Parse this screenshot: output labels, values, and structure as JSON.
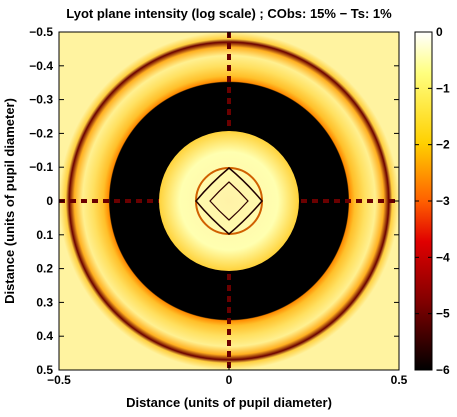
{
  "chart_data": {
    "type": "heatmap",
    "title": "Lyot plane intensity (log scale) ; CObs: 15% − Ts: 1%",
    "xlabel": "Distance (units of pupil diameter)",
    "ylabel": "Distance (units of pupil diameter)",
    "xlim": [
      -0.5,
      0.5
    ],
    "ylim": [
      -0.5,
      0.5
    ],
    "y_direction": "reversed",
    "x_ticks": [
      {
        "value": -0.5,
        "label": "−0.5"
      },
      {
        "value": 0,
        "label": "0"
      },
      {
        "value": 0.5,
        "label": "0.5"
      }
    ],
    "y_ticks": [
      {
        "value": -0.5,
        "label": "−0.5"
      },
      {
        "value": -0.4,
        "label": "−0.4"
      },
      {
        "value": -0.3,
        "label": "−0.3"
      },
      {
        "value": -0.2,
        "label": "−0.2"
      },
      {
        "value": -0.1,
        "label": "−0.1"
      },
      {
        "value": 0,
        "label": "0"
      },
      {
        "value": 0.1,
        "label": "0.1"
      },
      {
        "value": 0.2,
        "label": "0.2"
      },
      {
        "value": 0.3,
        "label": "0.3"
      },
      {
        "value": 0.4,
        "label": "0.4"
      },
      {
        "value": 0.5,
        "label": "0.5"
      }
    ],
    "colorbar": {
      "range": [
        -6,
        0
      ],
      "colormap": "hot",
      "ticks": [
        {
          "value": 0,
          "label": "0"
        },
        {
          "value": -1,
          "label": "−1"
        },
        {
          "value": -2,
          "label": "−2"
        },
        {
          "value": -3,
          "label": "−3"
        },
        {
          "value": -4,
          "label": "−4"
        },
        {
          "value": -5,
          "label": "−5"
        },
        {
          "value": -6,
          "label": "−6"
        }
      ]
    },
    "features": {
      "central_disk_radius": 0.2,
      "outer_ring_inner_radius": 0.5,
      "background_level": -6,
      "disk_level": -0.3,
      "outer_ring_level": -0.6,
      "spider_arm_level": -4.6
    }
  }
}
